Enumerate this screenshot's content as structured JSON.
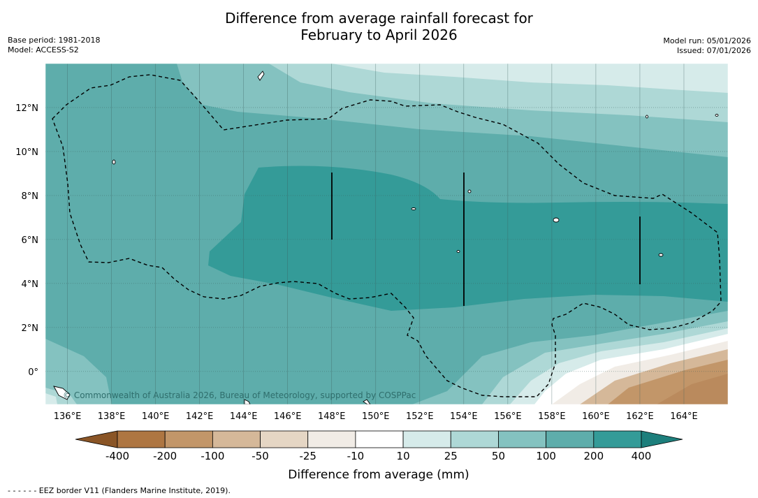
{
  "title": {
    "line1": "Difference from average rainfall forecast for",
    "line2": "February to April 2026"
  },
  "meta": {
    "base_period": "Base period: 1981-2018",
    "model": "Model: ACCESS-S2",
    "model_run": "Model run: 05/01/2026",
    "issued": "Issued: 07/01/2026"
  },
  "map": {
    "lon_min": 135,
    "lon_max": 166,
    "lat_min": -1.5,
    "lat_max": 14,
    "x_ticks": [
      "136°E",
      "138°E",
      "140°E",
      "142°E",
      "144°E",
      "146°E",
      "148°E",
      "150°E",
      "152°E",
      "154°E",
      "156°E",
      "158°E",
      "160°E",
      "162°E",
      "164°E"
    ],
    "x_tick_values": [
      136,
      138,
      140,
      142,
      144,
      146,
      148,
      150,
      152,
      154,
      156,
      158,
      160,
      162,
      164
    ],
    "y_ticks": [
      "12°N",
      "10°N",
      "8°N",
      "6°N",
      "4°N",
      "2°N",
      "0°"
    ],
    "y_tick_values": [
      12,
      10,
      8,
      6,
      4,
      2,
      0
    ],
    "copyright": "© Commonwealth of Australia 2026, Bureau of Meteorology, supported by COSPPac",
    "gridlines": true
  },
  "colorbar": {
    "title": "Difference from average (mm)",
    "tick_labels": [
      "-400",
      "-200",
      "-100",
      "-50",
      "-25",
      "-10",
      "10",
      "25",
      "50",
      "100",
      "200",
      "400"
    ],
    "colors": [
      "#8a5526",
      "#ae7642",
      "#c29669",
      "#d5b899",
      "#e5d6c4",
      "#f1ece6",
      "#ffffff",
      "#d6ebea",
      "#aed8d6",
      "#84c2c0",
      "#5eadab",
      "#349b98",
      "#1d7f7c"
    ]
  },
  "legend": {
    "eez_note": "- -  - -  - - EEZ border V11 (Flanders Marine Institute, 2019)."
  }
}
